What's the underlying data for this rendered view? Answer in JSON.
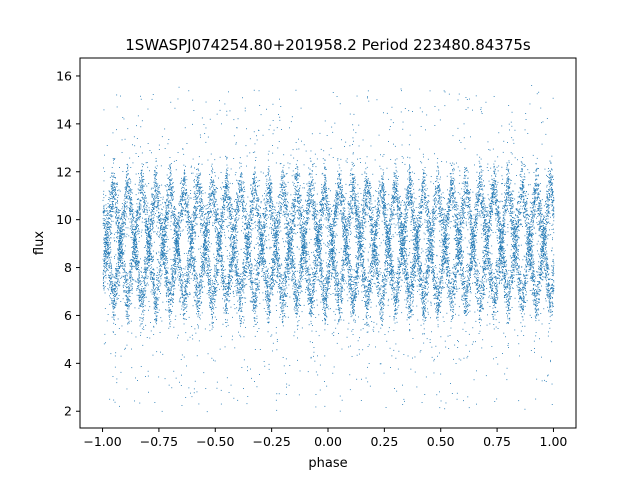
{
  "chart_data": {
    "type": "scatter",
    "title": "1SWASPJ074254.80+201958.2 Period 223480.84375s",
    "xlabel": "phase",
    "ylabel": "flux",
    "xlim": [
      -1.1,
      1.1
    ],
    "ylim": [
      1.3,
      16.75
    ],
    "x_ticks": [
      -1.0,
      -0.75,
      -0.5,
      -0.25,
      0.0,
      0.25,
      0.5,
      0.75,
      1.0
    ],
    "x_tick_labels": [
      "−1.00",
      "−0.75",
      "−0.50",
      "−0.25",
      "0.00",
      "0.25",
      "0.50",
      "0.75",
      "1.00"
    ],
    "y_ticks": [
      2,
      4,
      6,
      8,
      10,
      12,
      14,
      16
    ],
    "y_tick_labels": [
      "2",
      "4",
      "6",
      "8",
      "10",
      "12",
      "14",
      "16"
    ],
    "grid": false,
    "legend": "none",
    "marker_color": "#1f77b4",
    "x_range": [
      -1.0,
      1.0
    ],
    "approx_points": 22000,
    "flux_median": 9.0,
    "flux_band": [
      6.0,
      12.5
    ],
    "zigzag_cycles_over_phase_range": 16,
    "notes_visible_features": [
      {
        "phase": -0.97,
        "flux_max": 15.6
      },
      {
        "phase": -0.33,
        "flux_max": 14.5
      },
      {
        "phase": -0.2,
        "flux_max": 14.3
      },
      {
        "phase": 0.03,
        "flux_max": 15.9
      },
      {
        "phase": 0.67,
        "flux_max": 14.5
      },
      {
        "phase": 0.8,
        "flux_max": 14.3
      }
    ]
  }
}
